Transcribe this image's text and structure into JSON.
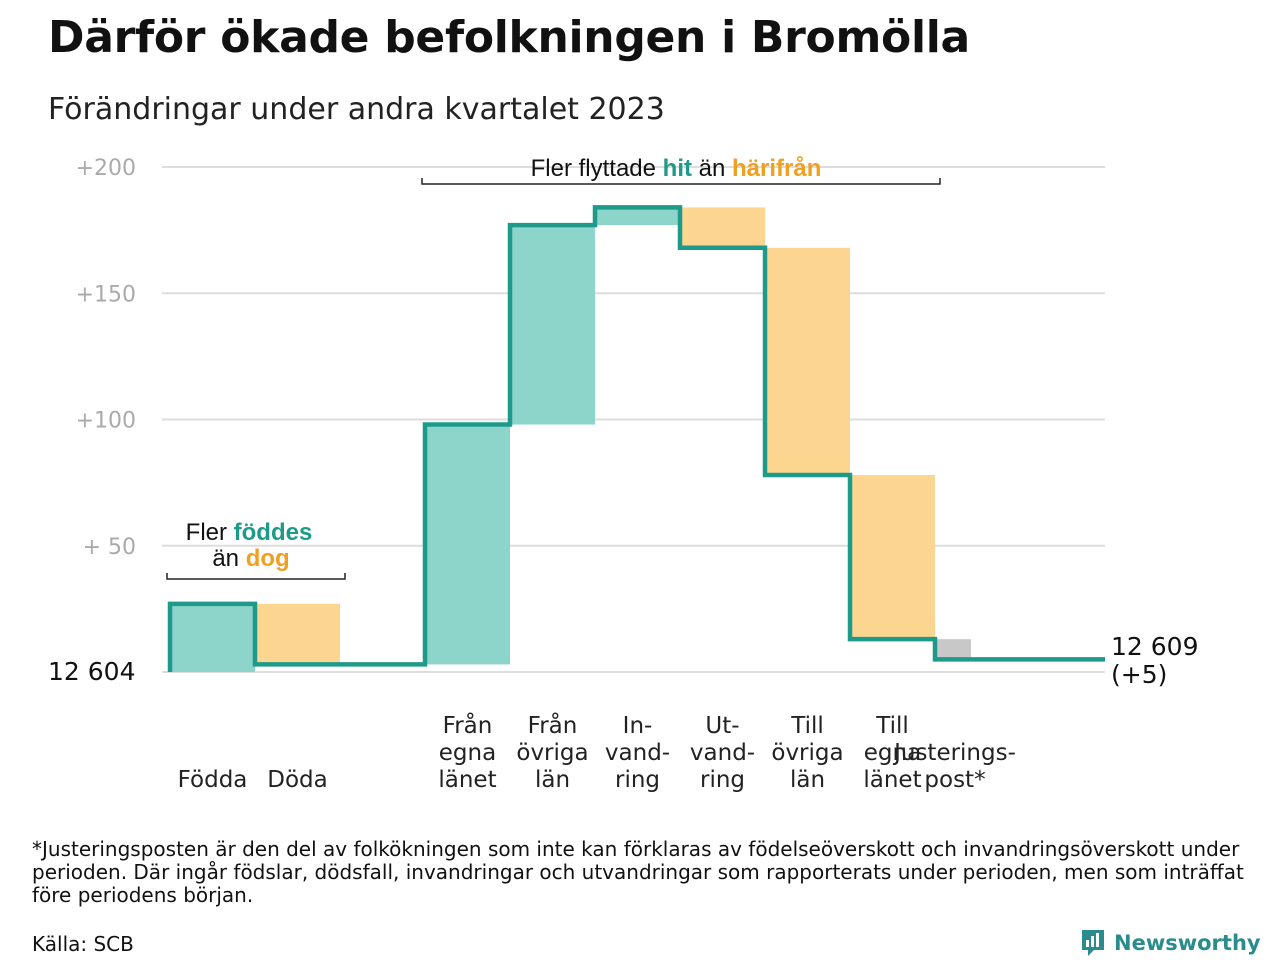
{
  "title": "Därför ökade befolkningen i Bromölla",
  "subtitle": "Förändringar under andra kvartalet 2023",
  "footnote": "*Justeringsposten är den del av folkökningen som inte kan förklaras av födelseöverskott och invandringsöverskott under perioden. Där ingår födslar, dödsfall, invandringar och utvandringar som rapporterats under perioden, men som inträffat före periodens början.",
  "source": "Källa: SCB",
  "brand": "Newsworthy",
  "colors": {
    "increase": "#8dd5cb",
    "decrease": "#fcd690",
    "adjust": "#c8c8c8",
    "line": "#1e9a8a",
    "hit": "#1e9a8a",
    "harifran": "#f0a020",
    "grid": "#dddddd"
  },
  "annotations": {
    "born": {
      "line1_a": "Fler",
      "line1_b": "föddes",
      "line2_a": "än",
      "line2_b": "dog"
    },
    "moved": {
      "a": "Fler flyttade",
      "b": "hit",
      "c": "än",
      "d": "härifrån"
    }
  },
  "chart_data": {
    "type": "waterfall",
    "start_label": "12  604",
    "end_label_1": "12 609",
    "end_label_2": "(+5)",
    "y_ticks": [
      {
        "value": 200,
        "label": "+200"
      },
      {
        "value": 150,
        "label": "+150"
      },
      {
        "value": 100,
        "label": "+100"
      },
      {
        "value": 50,
        "label": "+  50"
      }
    ],
    "ylim": [
      0,
      200
    ],
    "steps": [
      {
        "label_lines": [
          "Födda"
        ],
        "delta": 27,
        "kind": "increase"
      },
      {
        "label_lines": [
          "Döda"
        ],
        "delta": -24,
        "kind": "decrease"
      },
      {
        "label_lines": [],
        "delta": 0,
        "kind": "gap"
      },
      {
        "label_lines": [
          "Från",
          "egna",
          "länet"
        ],
        "delta": 95,
        "kind": "increase"
      },
      {
        "label_lines": [
          "Från",
          "övriga",
          "län"
        ],
        "delta": 79,
        "kind": "increase"
      },
      {
        "label_lines": [
          "In-",
          "vand-",
          "ring"
        ],
        "delta": 7,
        "kind": "increase"
      },
      {
        "label_lines": [
          "Ut-",
          "vand-",
          "ring"
        ],
        "delta": -16,
        "kind": "decrease"
      },
      {
        "label_lines": [
          "Till",
          "övriga",
          "län"
        ],
        "delta": -90,
        "kind": "decrease"
      },
      {
        "label_lines": [
          "Till",
          "egna",
          "länet"
        ],
        "delta": -65,
        "kind": "decrease"
      },
      {
        "label_lines": [
          "Justerings-",
          "post*"
        ],
        "delta": -8,
        "kind": "adjust"
      }
    ]
  }
}
